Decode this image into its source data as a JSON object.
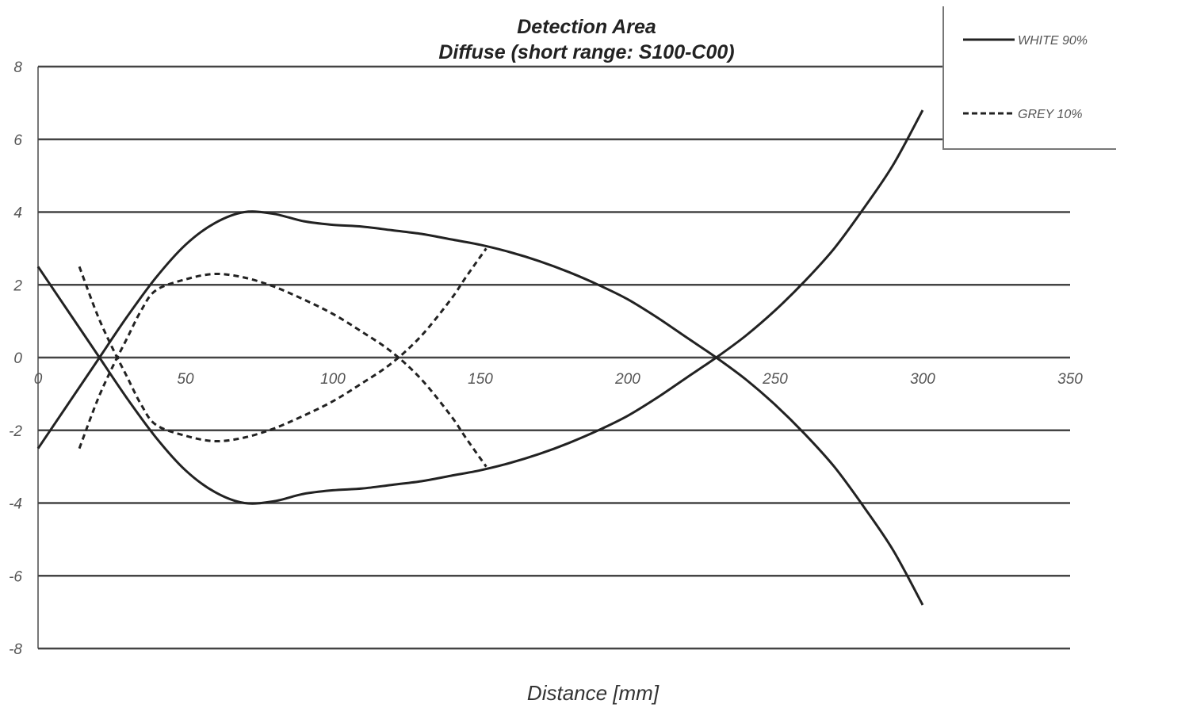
{
  "chart_data": {
    "type": "line",
    "title": "Detection Area",
    "subtitle": "Diffuse (short range: S100-C00)",
    "xlabel": "Distance [mm]",
    "ylabel": "",
    "xlim": [
      0,
      350
    ],
    "ylim": [
      -8,
      8
    ],
    "x_ticks": [
      "0",
      "50",
      "100",
      "150",
      "200",
      "250",
      "300",
      "350"
    ],
    "y_ticks": [
      "8",
      "6",
      "4",
      "2",
      "0",
      "-2",
      "-4",
      "-6",
      "-8"
    ],
    "grid": "horizontal",
    "legend_position": "top-right",
    "series": [
      {
        "name": "WHITE 90%",
        "style": "solid",
        "upper": [
          [
            0,
            -2.5
          ],
          [
            10,
            -1.3
          ],
          [
            20,
            -0.1
          ],
          [
            30,
            1.1
          ],
          [
            40,
            2.2
          ],
          [
            50,
            3.1
          ],
          [
            60,
            3.7
          ],
          [
            70,
            4.0
          ],
          [
            80,
            3.95
          ],
          [
            90,
            3.75
          ],
          [
            100,
            3.65
          ],
          [
            110,
            3.6
          ],
          [
            120,
            3.5
          ],
          [
            130,
            3.4
          ],
          [
            140,
            3.25
          ],
          [
            150,
            3.1
          ],
          [
            160,
            2.9
          ],
          [
            170,
            2.65
          ],
          [
            180,
            2.35
          ],
          [
            190,
            2.0
          ],
          [
            200,
            1.6
          ],
          [
            210,
            1.1
          ],
          [
            220,
            0.55
          ],
          [
            230,
            0.0
          ],
          [
            240,
            -0.6
          ],
          [
            250,
            -1.3
          ],
          [
            260,
            -2.1
          ],
          [
            270,
            -3.0
          ],
          [
            280,
            -4.1
          ],
          [
            290,
            -5.3
          ],
          [
            300,
            -6.8
          ]
        ],
        "lower": [
          [
            0,
            2.5
          ],
          [
            10,
            1.3
          ],
          [
            20,
            0.1
          ],
          [
            30,
            -1.1
          ],
          [
            40,
            -2.2
          ],
          [
            50,
            -3.1
          ],
          [
            60,
            -3.7
          ],
          [
            70,
            -4.0
          ],
          [
            80,
            -3.95
          ],
          [
            90,
            -3.75
          ],
          [
            100,
            -3.65
          ],
          [
            110,
            -3.6
          ],
          [
            120,
            -3.5
          ],
          [
            130,
            -3.4
          ],
          [
            140,
            -3.25
          ],
          [
            150,
            -3.1
          ],
          [
            160,
            -2.9
          ],
          [
            170,
            -2.65
          ],
          [
            180,
            -2.35
          ],
          [
            190,
            -2.0
          ],
          [
            200,
            -1.6
          ],
          [
            210,
            -1.1
          ],
          [
            220,
            -0.55
          ],
          [
            230,
            0.0
          ],
          [
            240,
            0.6
          ],
          [
            250,
            1.3
          ],
          [
            260,
            2.1
          ],
          [
            270,
            3.0
          ],
          [
            280,
            4.1
          ],
          [
            290,
            5.3
          ],
          [
            300,
            6.8
          ]
        ]
      },
      {
        "name": "GREY 10%",
        "style": "dashed",
        "upper": [
          [
            14,
            -2.5
          ],
          [
            20,
            -1.2
          ],
          [
            25,
            -0.3
          ],
          [
            30,
            0.5
          ],
          [
            35,
            1.3
          ],
          [
            40,
            1.85
          ],
          [
            50,
            2.15
          ],
          [
            60,
            2.3
          ],
          [
            70,
            2.2
          ],
          [
            80,
            1.95
          ],
          [
            90,
            1.6
          ],
          [
            100,
            1.2
          ],
          [
            110,
            0.7
          ],
          [
            120,
            0.15
          ],
          [
            130,
            -0.6
          ],
          [
            140,
            -1.6
          ],
          [
            145,
            -2.2
          ],
          [
            152,
            -3.0
          ]
        ],
        "lower": [
          [
            14,
            2.5
          ],
          [
            20,
            1.2
          ],
          [
            25,
            0.3
          ],
          [
            30,
            -0.5
          ],
          [
            35,
            -1.3
          ],
          [
            40,
            -1.85
          ],
          [
            50,
            -2.15
          ],
          [
            60,
            -2.3
          ],
          [
            70,
            -2.2
          ],
          [
            80,
            -1.95
          ],
          [
            90,
            -1.6
          ],
          [
            100,
            -1.2
          ],
          [
            110,
            -0.7
          ],
          [
            120,
            -0.15
          ],
          [
            130,
            0.6
          ],
          [
            140,
            1.6
          ],
          [
            145,
            2.2
          ],
          [
            152,
            3.0
          ]
        ]
      }
    ]
  }
}
